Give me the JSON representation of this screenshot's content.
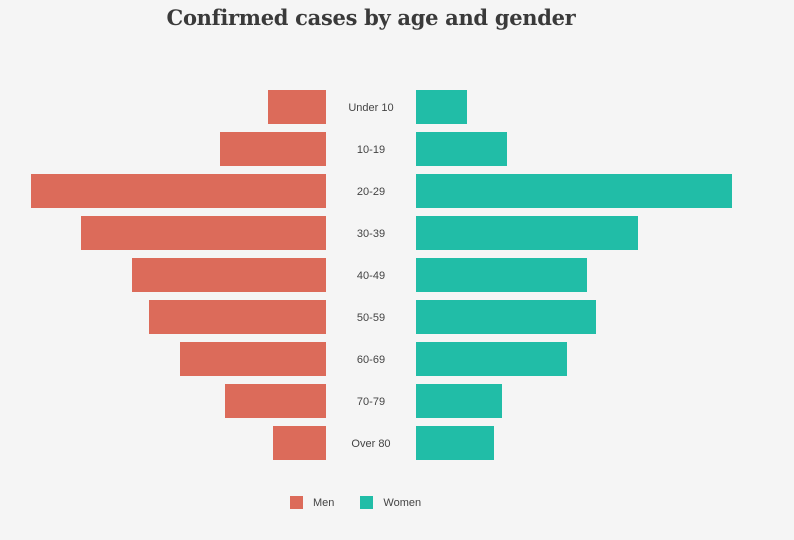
{
  "chart_data": {
    "type": "bar",
    "orientation": "horizontal-butterfly",
    "title": "Confirmed cases by age and gender",
    "categories": [
      "Under 10",
      "10-19",
      "20-29",
      "30-39",
      "40-49",
      "50-59",
      "60-69",
      "70-79",
      "Over 80"
    ],
    "series": [
      {
        "name": "Men",
        "color": "#dc6b5a",
        "values": [
          58,
          106,
          295,
          245,
          194,
          177,
          146,
          101,
          53
        ]
      },
      {
        "name": "Women",
        "color": "#21bda7",
        "values": [
          51,
          91,
          316,
          222,
          171,
          180,
          151,
          86,
          78
        ]
      }
    ],
    "grid": false,
    "legend_position": "bottom-center"
  }
}
